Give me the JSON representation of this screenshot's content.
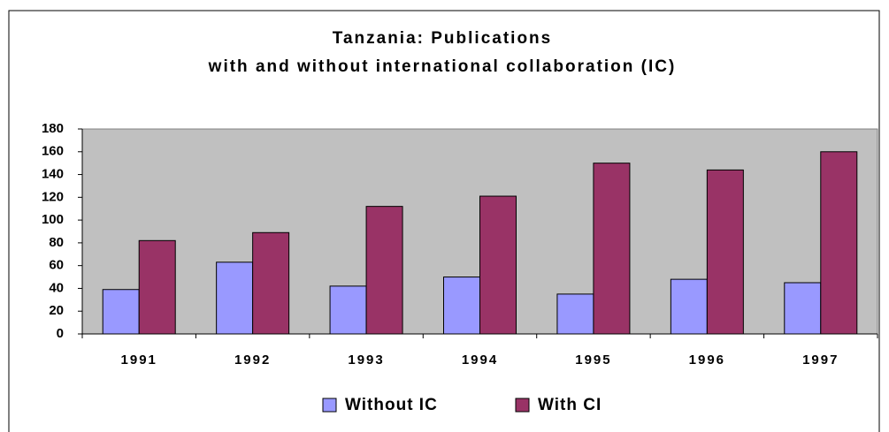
{
  "chart_data": {
    "type": "bar",
    "title": [
      "Tanzania: Publications",
      "with and without international collaboration (IC)"
    ],
    "categories": [
      "1991",
      "1992",
      "1993",
      "1994",
      "1995",
      "1996",
      "1997"
    ],
    "series": [
      {
        "name": "Without IC",
        "color": "#9999ff",
        "values": [
          39,
          63,
          42,
          50,
          35,
          48,
          45
        ]
      },
      {
        "name": "With CI",
        "color": "#993366",
        "values": [
          82,
          89,
          112,
          121,
          150,
          144,
          160
        ]
      }
    ],
    "ylim": [
      0,
      180
    ],
    "yticks": [
      0,
      20,
      40,
      60,
      80,
      100,
      120,
      140,
      160,
      180
    ],
    "legend": "bottom",
    "plot_background": "#c0c0c0"
  }
}
